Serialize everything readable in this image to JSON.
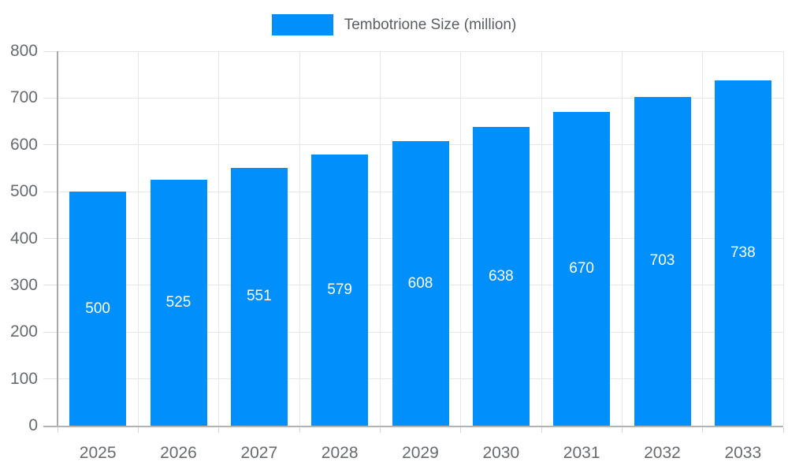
{
  "legend": {
    "label": "Tembotrione Size (million)",
    "swatch_color": "#008FFB"
  },
  "colors": {
    "bar": "#008FFB",
    "grid_line": "#e7e7e7",
    "axis_line_y": "#a9a9a9",
    "axis_line_x": "#b3b3b3",
    "tick": "#dedede",
    "axis_label_text": "#686b6e",
    "legend_text": "#5a5d60",
    "value_label_text": "#ffffff",
    "background": "#ffffff"
  },
  "chart_data": {
    "type": "bar",
    "title": "Tembotrione Size (million)",
    "categories": [
      "2025",
      "2026",
      "2027",
      "2028",
      "2029",
      "2030",
      "2031",
      "2032",
      "2033"
    ],
    "series": [
      {
        "name": "Tembotrione Size (million)",
        "values": [
          500,
          525,
          551,
          579,
          608,
          638,
          670,
          703,
          738
        ]
      }
    ],
    "xlabel": "",
    "ylabel": "",
    "ylim": [
      0,
      800
    ],
    "ytick_step": 100,
    "ytick_labels": [
      "0",
      "100",
      "200",
      "300",
      "400",
      "500",
      "600",
      "700",
      "800"
    ],
    "grid": true,
    "legend_position": "top",
    "bar_color": "#008FFB",
    "value_labels_shown": true,
    "value_label_position": "center-of-bar"
  }
}
